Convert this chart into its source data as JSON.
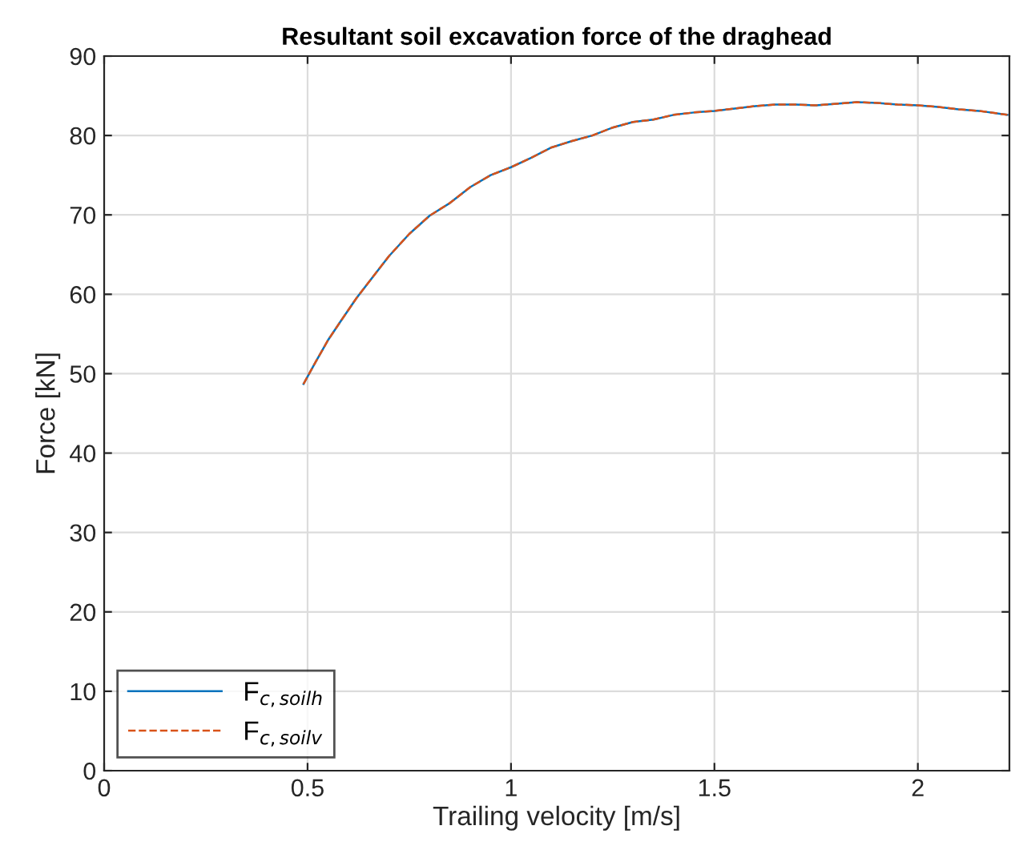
{
  "chart_data": {
    "type": "line",
    "title": "Resultant soil excavation force of the draghead",
    "xlabel": "Trailing velocity [m/s]",
    "ylabel": "Force [kN]",
    "x": [
      0.49,
      0.52,
      0.55,
      0.58,
      0.62,
      0.65,
      0.7,
      0.75,
      0.8,
      0.85,
      0.9,
      0.95,
      1.0,
      1.05,
      1.1,
      1.15,
      1.2,
      1.25,
      1.3,
      1.35,
      1.4,
      1.45,
      1.5,
      1.55,
      1.6,
      1.65,
      1.7,
      1.75,
      1.8,
      1.85,
      1.9,
      1.95,
      2.0,
      2.05,
      2.1,
      2.15,
      2.22
    ],
    "series": [
      {
        "name": "F$_{c,soilh}$",
        "color": "#0072bd",
        "line_style": "solid",
        "values": [
          48.7,
          51.5,
          54.2,
          56.5,
          59.5,
          61.5,
          64.8,
          67.6,
          69.9,
          71.5,
          73.5,
          75.0,
          76.0,
          77.2,
          78.5,
          79.3,
          80.0,
          81.0,
          81.7,
          82.0,
          82.6,
          82.9,
          83.1,
          83.4,
          83.7,
          83.9,
          83.9,
          83.8,
          84.0,
          84.2,
          84.1,
          83.9,
          83.8,
          83.6,
          83.3,
          83.1,
          82.6
        ]
      },
      {
        "name": "F$_{c,soilv}$",
        "color": "#d95319",
        "line_style": "dashed",
        "values": [
          48.7,
          51.5,
          54.2,
          56.5,
          59.5,
          61.5,
          64.8,
          67.6,
          69.9,
          71.5,
          73.5,
          75.0,
          76.0,
          77.2,
          78.5,
          79.3,
          80.0,
          81.0,
          81.7,
          82.0,
          82.6,
          82.9,
          83.1,
          83.4,
          83.7,
          83.9,
          83.9,
          83.8,
          84.0,
          84.2,
          84.1,
          83.9,
          83.8,
          83.6,
          83.3,
          83.1,
          82.6
        ]
      }
    ],
    "xlim": [
      0,
      2.225
    ],
    "xticks": [
      0,
      0.5,
      1,
      1.5,
      2
    ],
    "ylim": [
      0,
      90
    ],
    "yticks": [
      0,
      10,
      20,
      30,
      40,
      50,
      60,
      70,
      80,
      90
    ],
    "grid": true,
    "legend": "bottom left",
    "marker": "none"
  }
}
